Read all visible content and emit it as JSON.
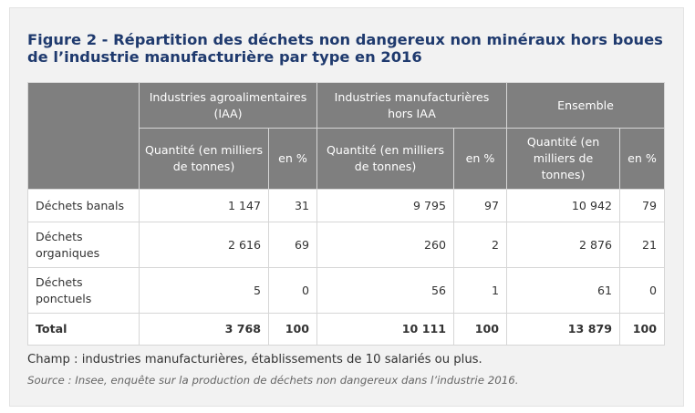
{
  "title": "Figure 2 - Répartition des déchets non dangereux non minéraux hors boues de l’industrie manufacturière par type en 2016",
  "table": {
    "groups": [
      "Industries agroalimentaires (IAA)",
      "Industries manufacturières hors IAA",
      "Ensemble"
    ],
    "sub_qty": "Quantité (en milliers de tonnes)",
    "sub_pct": "en %",
    "rows": [
      {
        "label": "Déchets banals",
        "cells": [
          "1 147",
          "31",
          "9 795",
          "97",
          "10 942",
          "79"
        ]
      },
      {
        "label": "Déchets organiques",
        "cells": [
          "2 616",
          "69",
          "260",
          "2",
          "2 876",
          "21"
        ]
      },
      {
        "label": "Déchets ponctuels",
        "cells": [
          "5",
          "0",
          "56",
          "1",
          "61",
          "0"
        ]
      },
      {
        "label": "Total",
        "cells": [
          "3 768",
          "100",
          "10 111",
          "100",
          "13 879",
          "100"
        ]
      }
    ]
  },
  "champ": "Champ : industries manufacturières, établissements de 10 salariés ou plus.",
  "source": "Source : Insee, enquête sur la production de déchets non dangereux dans l’industrie 2016."
}
